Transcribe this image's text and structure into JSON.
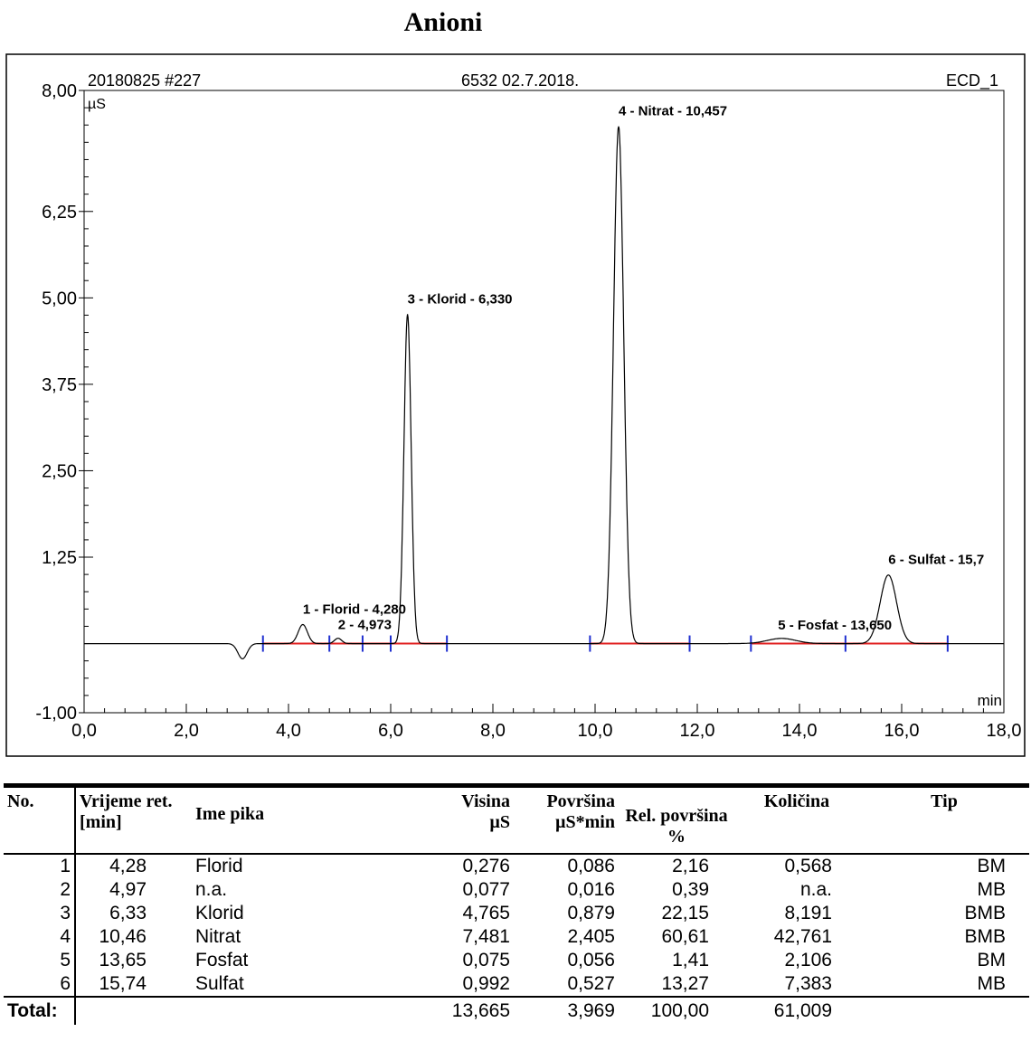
{
  "title": "Anioni",
  "chart_data": {
    "type": "line",
    "header_left": "20180825 #227",
    "header_center": "6532 02.7.2018.",
    "header_right": "ECD_1",
    "ylabel": "µS",
    "xlabel": "min",
    "xlim": [
      0,
      18
    ],
    "ylim": [
      -1,
      8
    ],
    "x_ticks": [
      "0,0",
      "2,0",
      "4,0",
      "6,0",
      "8,0",
      "10,0",
      "12,0",
      "14,0",
      "16,0",
      "18,0"
    ],
    "x_tick_values": [
      0,
      2,
      4,
      6,
      8,
      10,
      12,
      14,
      16,
      18
    ],
    "y_ticks": [
      "-1,00",
      "1,25",
      "2,50",
      "3,75",
      "5,00",
      "6,25",
      "8,00"
    ],
    "y_tick_values": [
      -1,
      1.25,
      2.5,
      3.75,
      5,
      6.25,
      8
    ],
    "dip": {
      "x": 3.1,
      "y": -0.22
    },
    "peaks": [
      {
        "label": "1 - Florid - 4,280",
        "x": 4.28,
        "height": 0.276
      },
      {
        "label": "2 - 4,973",
        "x": 4.97,
        "height": 0.077
      },
      {
        "label": "3 - Klorid - 6,330",
        "x": 6.33,
        "height": 4.765
      },
      {
        "label": "4 - Nitrat - 10,457",
        "x": 10.46,
        "height": 7.481
      },
      {
        "label": "5 - Fosfat - 13,650",
        "x": 13.65,
        "height": 0.075
      },
      {
        "label": "6 - Sulfat - 15,7",
        "x": 15.74,
        "height": 0.992
      }
    ],
    "integration_marks": [
      3.5,
      4.8,
      5.45,
      6.0,
      7.1,
      9.9,
      11.85,
      13.05,
      14.9,
      16.9
    ]
  },
  "table": {
    "headers": {
      "no": "No.",
      "rt_1": "Vrijeme ret.",
      "rt_2": "[min]",
      "name": "Ime pika",
      "height_1": "Visina",
      "height_2": "µS",
      "area_1": "Površina",
      "area_2": "µS*min",
      "rel_1": "Rel. površina",
      "rel_2": "%",
      "amount": "Količina",
      "type": "Tip"
    },
    "rows": [
      {
        "no": "1",
        "rt": "4,28",
        "name": "Florid",
        "height": "0,276",
        "area": "0,086",
        "rel": "2,16",
        "amount": "0,568",
        "type": "BM"
      },
      {
        "no": "2",
        "rt": "4,97",
        "name": "n.a.",
        "height": "0,077",
        "area": "0,016",
        "rel": "0,39",
        "amount": "n.a.",
        "type": "MB"
      },
      {
        "no": "3",
        "rt": "6,33",
        "name": "Klorid",
        "height": "4,765",
        "area": "0,879",
        "rel": "22,15",
        "amount": "8,191",
        "type": "BMB"
      },
      {
        "no": "4",
        "rt": "10,46",
        "name": "Nitrat",
        "height": "7,481",
        "area": "2,405",
        "rel": "60,61",
        "amount": "42,761",
        "type": "BMB"
      },
      {
        "no": "5",
        "rt": "13,65",
        "name": "Fosfat",
        "height": "0,075",
        "area": "0,056",
        "rel": "1,41",
        "amount": "2,106",
        "type": "BM"
      },
      {
        "no": "6",
        "rt": "15,74",
        "name": "Sulfat",
        "height": "0,992",
        "area": "0,527",
        "rel": "13,27",
        "amount": "7,383",
        "type": "MB"
      }
    ],
    "total": {
      "label": "Total:",
      "height": "13,665",
      "area": "3,969",
      "rel": "100,00",
      "amount": "61,009"
    }
  }
}
